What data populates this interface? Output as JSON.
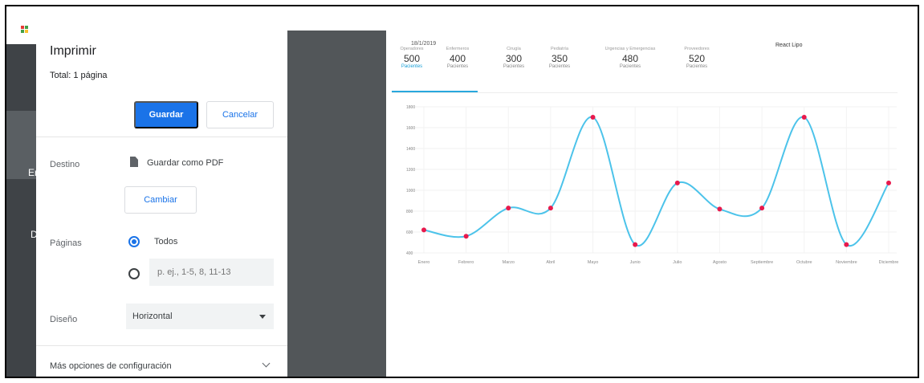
{
  "print_dialog": {
    "title": "Imprimir",
    "total": "Total: 1 página",
    "save_label": "Guardar",
    "cancel_label": "Cancelar",
    "destination_label": "Destino",
    "destination_value": "Guardar como PDF",
    "change_label": "Cambiar",
    "pages_label": "Páginas",
    "pages_all_label": "Todos",
    "pages_all_selected": true,
    "pages_custom_placeholder": "p. ej., 1-5, 8, 11-13",
    "layout_label": "Diseño",
    "layout_value": "Horizontal",
    "more_settings_label": "Más opciones de configuración"
  },
  "app_sidebar": {
    "partial_label_1": "Er",
    "partial_label_2": "D"
  },
  "preview": {
    "date": "18/1/2019",
    "app_title": "React Lipo",
    "stats": [
      {
        "label": "Operadores",
        "value": "500",
        "sub": "Pacientes",
        "active": true
      },
      {
        "label": "Enfermeros",
        "value": "400",
        "sub": "Pacientes",
        "active": false
      },
      {
        "label": "Cirugía",
        "value": "300",
        "sub": "Pacientes",
        "active": false
      },
      {
        "label": "Pediatría",
        "value": "350",
        "sub": "Pacientes",
        "active": false
      },
      {
        "label": "Urgencias y Emergencias",
        "value": "480",
        "sub": "Pacientes",
        "active": false
      },
      {
        "label": "Proveedores",
        "value": "520",
        "sub": "Pacientes",
        "active": false
      }
    ],
    "colors": {
      "line": "#4cc3ea",
      "point": "#e8194c",
      "accent": "#1a73e8"
    }
  },
  "chart_data": {
    "type": "line",
    "x": [
      "Enero",
      "Febrero",
      "Marzo",
      "Abril",
      "Mayo",
      "Junio",
      "Julio",
      "Agosto",
      "Septiembre",
      "Octubre",
      "Noviembre",
      "Diciembre"
    ],
    "series": [
      {
        "values": [
          620,
          560,
          830,
          830,
          1700,
          480,
          1070,
          820,
          830,
          1700,
          480,
          1070
        ]
      }
    ],
    "yticks": [
      "1800",
      "1600",
      "1400",
      "1200",
      "1000",
      "800",
      "600",
      "400"
    ],
    "ylim": [
      400,
      1800
    ],
    "grid": true
  }
}
